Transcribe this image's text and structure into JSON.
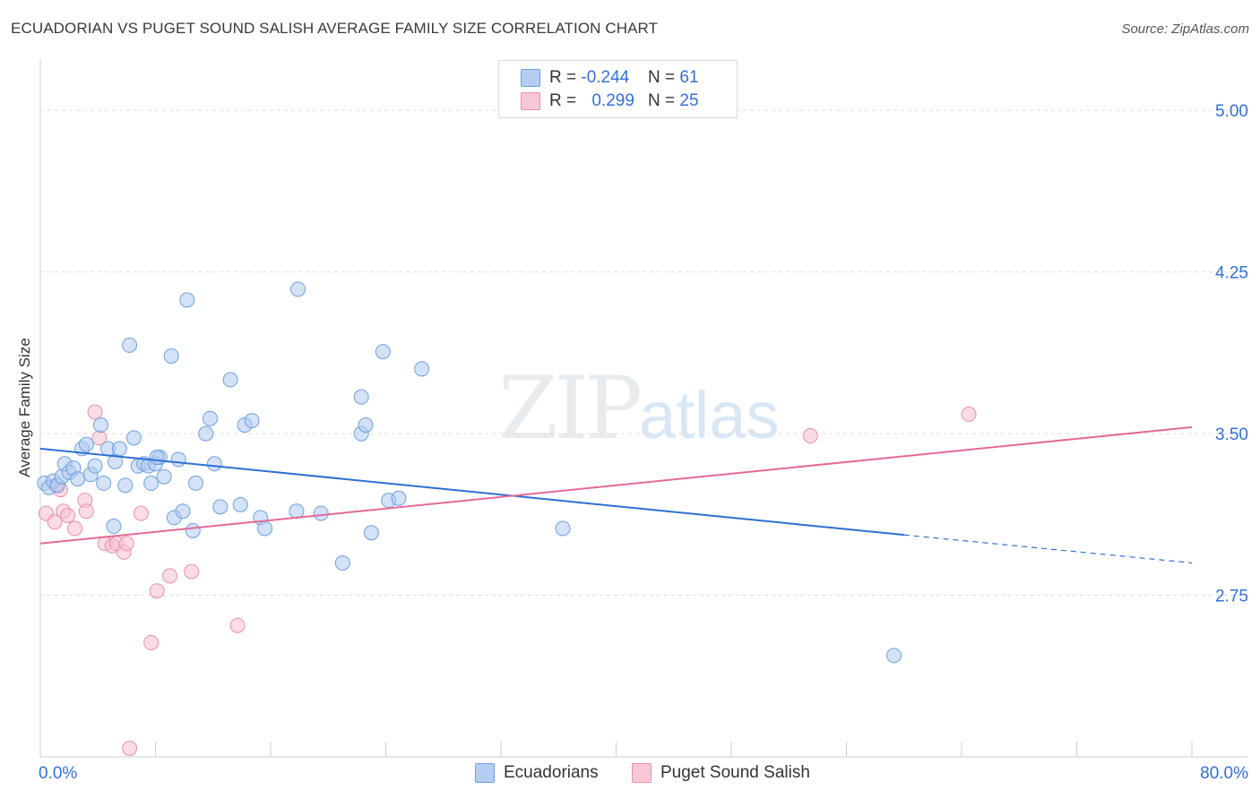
{
  "title": "ECUADORIAN VS PUGET SOUND SALISH AVERAGE FAMILY SIZE CORRELATION CHART",
  "source": "Source: ZipAtlas.com",
  "watermark": {
    "zip": "ZIP",
    "atlas": "atlas"
  },
  "legend": {
    "rows": [
      {
        "r_label": "R = ",
        "r_value": "-0.244",
        "n_label": "N = ",
        "n_value": "61"
      },
      {
        "r_label": "R = ",
        "r_value": "0.299",
        "n_label": "N = ",
        "n_value": "25"
      }
    ]
  },
  "colors": {
    "ecuadorians_fill": "#aecbf0",
    "ecuadorians_stroke": "#6f9fdc",
    "ecuadorians_line": "#2f6fd0",
    "puget_fill": "#f6bfd0",
    "puget_stroke": "#ea90ad",
    "puget_line": "#e36b94",
    "tick_label": "#3370d4"
  },
  "chart_data": {
    "type": "scatter",
    "title": "ECUADORIAN VS PUGET SOUND SALISH AVERAGE FAMILY SIZE CORRELATION CHART",
    "xlabel": "",
    "ylabel": "Average Family Size",
    "xlim": [
      0,
      80
    ],
    "ylim": [
      2.0,
      5.2
    ],
    "x_tick_labels": [
      "0.0%",
      "80.0%"
    ],
    "y_ticks": [
      2.75,
      3.5,
      4.25,
      5.0
    ],
    "y_tick_labels": [
      "2.75",
      "3.50",
      "4.25",
      "5.00"
    ],
    "grid": true,
    "legend_position": "top-center",
    "series": [
      {
        "name": "Ecuadorians",
        "r": -0.244,
        "n": 61,
        "trend": {
          "x": [
            0,
            60
          ],
          "y": [
            3.43,
            3.03
          ],
          "dashed_to": [
            80,
            2.9
          ]
        },
        "points": [
          [
            0.3,
            3.27
          ],
          [
            0.6,
            3.25
          ],
          [
            0.9,
            3.28
          ],
          [
            1.2,
            3.26
          ],
          [
            1.5,
            3.3
          ],
          [
            1.7,
            3.36
          ],
          [
            2.0,
            3.32
          ],
          [
            2.3,
            3.34
          ],
          [
            2.6,
            3.29
          ],
          [
            2.9,
            3.43
          ],
          [
            3.2,
            3.45
          ],
          [
            3.5,
            3.31
          ],
          [
            3.8,
            3.35
          ],
          [
            4.2,
            3.54
          ],
          [
            4.4,
            3.27
          ],
          [
            4.7,
            3.43
          ],
          [
            5.1,
            3.07
          ],
          [
            5.2,
            3.37
          ],
          [
            5.5,
            3.43
          ],
          [
            5.9,
            3.26
          ],
          [
            6.2,
            3.91
          ],
          [
            6.5,
            3.48
          ],
          [
            6.8,
            3.35
          ],
          [
            7.2,
            3.36
          ],
          [
            7.5,
            3.35
          ],
          [
            7.7,
            3.27
          ],
          [
            8.0,
            3.36
          ],
          [
            8.3,
            3.39
          ],
          [
            8.6,
            3.3
          ],
          [
            9.1,
            3.86
          ],
          [
            9.3,
            3.11
          ],
          [
            9.6,
            3.38
          ],
          [
            9.9,
            3.14
          ],
          [
            10.2,
            4.12
          ],
          [
            10.6,
            3.05
          ],
          [
            10.8,
            3.27
          ],
          [
            11.5,
            3.5
          ],
          [
            11.8,
            3.57
          ],
          [
            12.1,
            3.36
          ],
          [
            12.5,
            3.16
          ],
          [
            13.2,
            3.75
          ],
          [
            13.9,
            3.17
          ],
          [
            14.2,
            3.54
          ],
          [
            14.7,
            3.56
          ],
          [
            15.3,
            3.11
          ],
          [
            15.6,
            3.06
          ],
          [
            17.8,
            3.14
          ],
          [
            17.9,
            4.17
          ],
          [
            19.5,
            3.13
          ],
          [
            21.0,
            2.9
          ],
          [
            22.3,
            3.5
          ],
          [
            22.3,
            3.67
          ],
          [
            22.6,
            3.54
          ],
          [
            23.0,
            3.04
          ],
          [
            23.8,
            3.88
          ],
          [
            24.2,
            3.19
          ],
          [
            24.9,
            3.2
          ],
          [
            26.5,
            3.8
          ],
          [
            36.3,
            3.06
          ],
          [
            59.3,
            2.47
          ],
          [
            8.1,
            3.39
          ]
        ]
      },
      {
        "name": "Puget Sound Salish",
        "r": 0.299,
        "n": 25,
        "trend": {
          "x": [
            0,
            80
          ],
          "y": [
            2.99,
            3.53
          ]
        },
        "points": [
          [
            0.4,
            3.13
          ],
          [
            1.0,
            3.09
          ],
          [
            1.4,
            3.24
          ],
          [
            1.6,
            3.14
          ],
          [
            1.9,
            3.12
          ],
          [
            2.4,
            3.06
          ],
          [
            3.1,
            3.19
          ],
          [
            3.2,
            3.14
          ],
          [
            3.8,
            3.6
          ],
          [
            4.1,
            3.48
          ],
          [
            4.5,
            2.99
          ],
          [
            5.0,
            2.98
          ],
          [
            5.3,
            2.99
          ],
          [
            5.8,
            2.95
          ],
          [
            6.2,
            2.04
          ],
          [
            7.0,
            3.13
          ],
          [
            7.7,
            2.53
          ],
          [
            8.1,
            2.77
          ],
          [
            9.0,
            2.84
          ],
          [
            10.5,
            2.86
          ],
          [
            13.7,
            2.61
          ],
          [
            53.5,
            3.49
          ],
          [
            64.5,
            3.59
          ],
          [
            1.1,
            3.26
          ],
          [
            6.0,
            2.99
          ]
        ]
      }
    ]
  }
}
